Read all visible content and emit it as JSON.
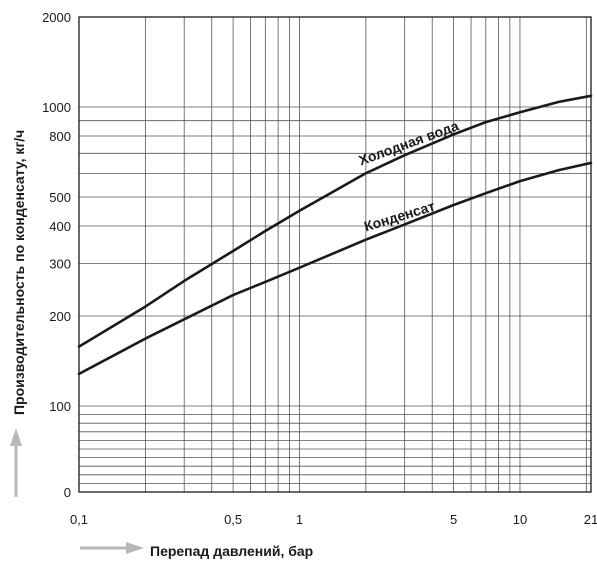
{
  "chart_data": {
    "type": "line",
    "xlabel": "Перепад давлений, бар",
    "ylabel": "Производительность по конденсату, кг/ч",
    "x_scale": "log",
    "y_scale": "log",
    "xlim": [
      0.1,
      21
    ],
    "ylim": [
      0,
      2000
    ],
    "x_ticks": [
      {
        "value": 0.1,
        "label": "0,1"
      },
      {
        "value": 0.5,
        "label": "0,5"
      },
      {
        "value": 1,
        "label": "1"
      },
      {
        "value": 5,
        "label": "5"
      },
      {
        "value": 10,
        "label": "10"
      },
      {
        "value": 21,
        "label": "21"
      }
    ],
    "y_ticks": [
      {
        "value": 0,
        "label": "0"
      },
      {
        "value": 100,
        "label": "100"
      },
      {
        "value": 200,
        "label": "200"
      },
      {
        "value": 300,
        "label": "300"
      },
      {
        "value": 400,
        "label": "400"
      },
      {
        "value": 500,
        "label": "500"
      },
      {
        "value": 800,
        "label": "800"
      },
      {
        "value": 1000,
        "label": "1000"
      },
      {
        "value": 2000,
        "label": "2000"
      }
    ],
    "grid": true,
    "series": [
      {
        "name": "Холодная вода",
        "x": [
          0.1,
          0.2,
          0.3,
          0.5,
          0.7,
          1,
          2,
          3,
          5,
          7,
          10,
          15,
          21
        ],
        "y": [
          158,
          215,
          262,
          330,
          385,
          450,
          600,
          690,
          810,
          890,
          960,
          1040,
          1090
        ]
      },
      {
        "name": "Конденсат",
        "x": [
          0.1,
          0.2,
          0.3,
          0.5,
          0.7,
          1,
          2,
          3,
          5,
          7,
          10,
          15,
          21
        ],
        "y": [
          128,
          168,
          195,
          235,
          260,
          290,
          360,
          405,
          470,
          515,
          565,
          615,
          650
        ]
      }
    ]
  },
  "colors": {
    "curve": "#1a1a1a",
    "grid": "#555555",
    "arrow": "#b8b8b8"
  }
}
